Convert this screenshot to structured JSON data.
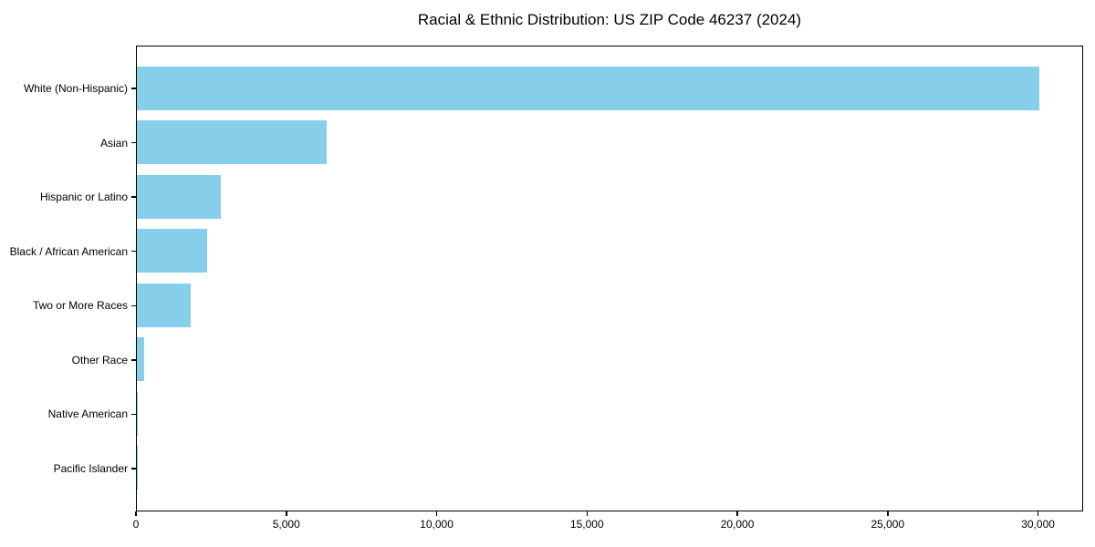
{
  "chart_data": {
    "type": "bar",
    "orientation": "horizontal",
    "title": "Racial & Ethnic Distribution: US ZIP Code 46237 (2024)",
    "categories": [
      "White (Non-Hispanic)",
      "Asian",
      "Hispanic or Latino",
      "Black / African American",
      "Two or More Races",
      "Other Race",
      "Native American",
      "Pacific Islander"
    ],
    "values": [
      30000,
      6300,
      2800,
      2350,
      1800,
      230,
      40,
      10
    ],
    "xlabel": "",
    "ylabel": "",
    "xlim": [
      0,
      31500
    ],
    "xticks": [
      0,
      5000,
      10000,
      15000,
      20000,
      25000,
      30000
    ],
    "xtick_labels": [
      "0",
      "5,000",
      "10,000",
      "15,000",
      "20,000",
      "25,000",
      "30,000"
    ],
    "bar_color": "#87CEEB",
    "axis_color": "#000000",
    "text_color": "#000000",
    "grid": false,
    "legend": null
  }
}
